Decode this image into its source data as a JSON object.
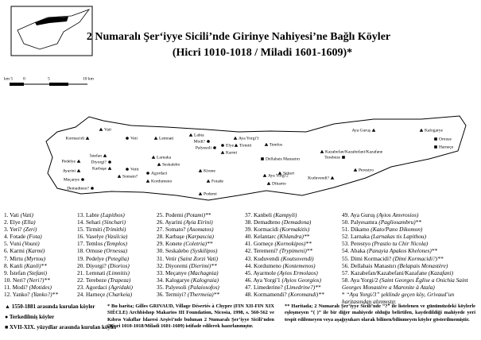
{
  "title": "2 Numaralı Şer‘iyye Sicili’nde Girinye Nahiyesi’ne Bağlı Köyler",
  "subtitle": "(Hicri 1010-1018 / Miladi 1601-1609)*",
  "scale": {
    "left": "km 5",
    "zero": "0",
    "mid": "5",
    "right": "10 km"
  },
  "map_labels": [
    "Vati",
    "Kormacidi",
    "Veti",
    "Lemnati",
    "Labta",
    "Modi?",
    "Palyesoli",
    "Elye",
    "Aya Yorgi'1",
    "Tirmiti",
    "Temlos",
    "Karmi",
    "Kazabefan/Kazabefani/Kazafane",
    "Aya Guruş",
    "Kalogarye",
    "Ornuse",
    "Harneçe",
    "Pedelye",
    "Ayarini",
    "Meçanye",
    "Demadteno?",
    "İstefan",
    "Diyorgi?",
    "Karbaşe",
    "Vetir",
    "Somato?",
    "Larnaka",
    "Seskalebo",
    "Agordaci",
    "Kordumeno",
    "Kirene",
    "Fotade",
    "Dellabais Manastırı",
    "Aya Yorgi'2",
    "Dikamo",
    "Sehari",
    "Kuduvendi?",
    "Terebeze",
    "Perestyo",
    "Podemi"
  ],
  "list": [
    [
      {
        "name": "1. Vati",
        "alt": "(Vati)"
      },
      {
        "name": "2. Elye",
        "alt": "(Ella)"
      },
      {
        "name": "3. Yeri?",
        "alt": "(Zeri)"
      },
      {
        "name": "4. Fotade",
        "alt": "(Fota)"
      },
      {
        "name": "5. Vuni",
        "alt": "(Vouni)"
      },
      {
        "name": "6. Karmi",
        "alt": "(Karmi)"
      },
      {
        "name": "7. Mirtu",
        "alt": "(Myrtou)"
      },
      {
        "name": "8. Kanli",
        "alt": "(Kanli)**"
      },
      {
        "name": "9. İstefan",
        "alt": "(Stefani)"
      },
      {
        "name": "10. Neri?",
        "alt": "(Neri?)**"
      },
      {
        "name": "11. Modi?",
        "alt": "(Motides)"
      },
      {
        "name": "12. Yanko?",
        "alt": "(Yanko?)**"
      }
    ],
    [
      {
        "name": "13. Labte",
        "alt": "(Lapithos)"
      },
      {
        "name": "14. Sehari",
        "alt": "(Sinchari)"
      },
      {
        "name": "15. Tirmiti",
        "alt": "(Trimithi)"
      },
      {
        "name": "16. Vaselye",
        "alt": "(Vasilcia)"
      },
      {
        "name": "17. Temlos",
        "alt": "(Templos)"
      },
      {
        "name": "18. Ornuse",
        "alt": "(Ornessa)"
      },
      {
        "name": "19. Pedelye",
        "alt": "(Peteglia)"
      },
      {
        "name": "20. Diyorgi?",
        "alt": "(Diorios)"
      },
      {
        "name": "21. Lemnati",
        "alt": "(Limnitis)"
      },
      {
        "name": "22. Terebeze",
        "alt": "(Trapeza)"
      },
      {
        "name": "23. Agordaci",
        "alt": "(Agridaki)"
      },
      {
        "name": "24. Harneçe",
        "alt": "(Charkeia)"
      }
    ],
    [
      {
        "name": "25. Podemi",
        "alt": "(Potami)**"
      },
      {
        "name": "26. Ayarini",
        "alt": "(Ayia Eirini)"
      },
      {
        "name": "27. Somato?",
        "alt": "(Asomatos)"
      },
      {
        "name": "28. Karbaşe",
        "alt": "(Karpascia)"
      },
      {
        "name": "29. Konete",
        "alt": "(Coletria)**"
      },
      {
        "name": "30. Seskalebo",
        "alt": "(Syskilipos)"
      },
      {
        "name": "31. Vetir",
        "alt": "(Saint Zorzi Vati)"
      },
      {
        "name": "32. Diyoremi",
        "alt": "(Dierimi)**"
      },
      {
        "name": "33. Meçanye",
        "alt": "(Machagnia)"
      },
      {
        "name": "34. Kalogarye",
        "alt": "(Kalograia)"
      },
      {
        "name": "35. Palyesoli",
        "alt": "(Palaiosofos)"
      },
      {
        "name": "36. Termiyi?",
        "alt": "(Thermeia)**"
      }
    ],
    [
      {
        "name": "37. Kanbeli",
        "alt": "(Kampyli)"
      },
      {
        "name": "38. Demadteno",
        "alt": "(Demadona)"
      },
      {
        "name": "39. Kormacidi",
        "alt": "(Kormakitis)"
      },
      {
        "name": "40. Kelantarc",
        "alt": "(Khlandra)**"
      },
      {
        "name": "41. Gorneçe",
        "alt": "(Kornokipos)**"
      },
      {
        "name": "42. Teremeni?",
        "alt": "(Trypimeni)**"
      },
      {
        "name": "43. Kuduvendi",
        "alt": "(Koutsovendi)"
      },
      {
        "name": "44. Kordumeno",
        "alt": "(Kontemenos)"
      },
      {
        "name": "45. Ayarmole",
        "alt": "(Ayios Ermolaos)"
      },
      {
        "name": "46. Aya Yorgi'1",
        "alt": "(Ayios Georgios)"
      },
      {
        "name": "47. Limederine?",
        "alt": "(Limedrine?)**"
      },
      {
        "name": "48. Kormamendi?",
        "alt": "(Koromandi)**"
      }
    ],
    [
      {
        "name": "49. Aya Guruş",
        "alt": "(Ayios Amvrosios)"
      },
      {
        "name": "50. Palyesamra",
        "alt": "(Pagliosambru)**"
      },
      {
        "name": "51. Dikamo",
        "alt": "(Kato/Pano Dikomon)"
      },
      {
        "name": "52. Larnaka",
        "alt": "(Larnakas tis Lapithou)"
      },
      {
        "name": "53. Perestyo",
        "alt": "(Prastio tu Chir Nicola)"
      },
      {
        "name": "54. Abaka",
        "alt": "(Panayia Apakos Khelones)**"
      },
      {
        "name": "55. Dimi Kormacidi?",
        "alt": "(Dimi Kormacidi?)**"
      },
      {
        "name": "56. Dellabais Manastırı",
        "alt": "(Belapais Monastère)"
      },
      {
        "name": "57. Kazabefan/Kazabefani/Kazafane",
        "alt": "(Kazafani)"
      },
      {
        "name": "58. Aya Yorgi/2",
        "alt": "(Saint Georges Église a Onichia Saint Georges Monastère a Maronite à Atala)"
      },
      {
        "name": "*",
        "alt": "“Aya Yorgi/3” şeklinde geçen köy, Grivaud’un haritasından alınmıştır."
      }
    ]
  ],
  "legend": [
    "1550-1881 arasında kurulan köyler",
    "Terkedilmiş köyler",
    "XVII-XIX. yüzyıllar arasında kurulan köyler"
  ],
  "notes": [
    "* Bu harita; Gilles GRIVAUD, Village Désertés à Chypre (FIN XII-FIN XIX SIÈCLE) Archbishop Makarios III Foundation, Nicosia, 1998, s. 560-562 ve Kıbrıs Vakıflar İdaresi Arşivi’nde bulunan 2 Numaralı Şer‘iyye Sicili’nden (Hicri 1010-1018/Miladi 1601-1609) istifade edilerek hazırlanmıştır.",
    "** Haritada; 2 Numaralı Şer‘iyye Sicili’nde “?” ile listelenen ve günümüzdeki köylerle eşleşmeyen “( )” ile bir diğer mahiyede olduğu belirtilen, kaydedildiği mahiyede yeri tespit edilemeyen veya aşağıyukarı olarak bilinen/bilinmeyen köyler gösterilmemiştir."
  ]
}
